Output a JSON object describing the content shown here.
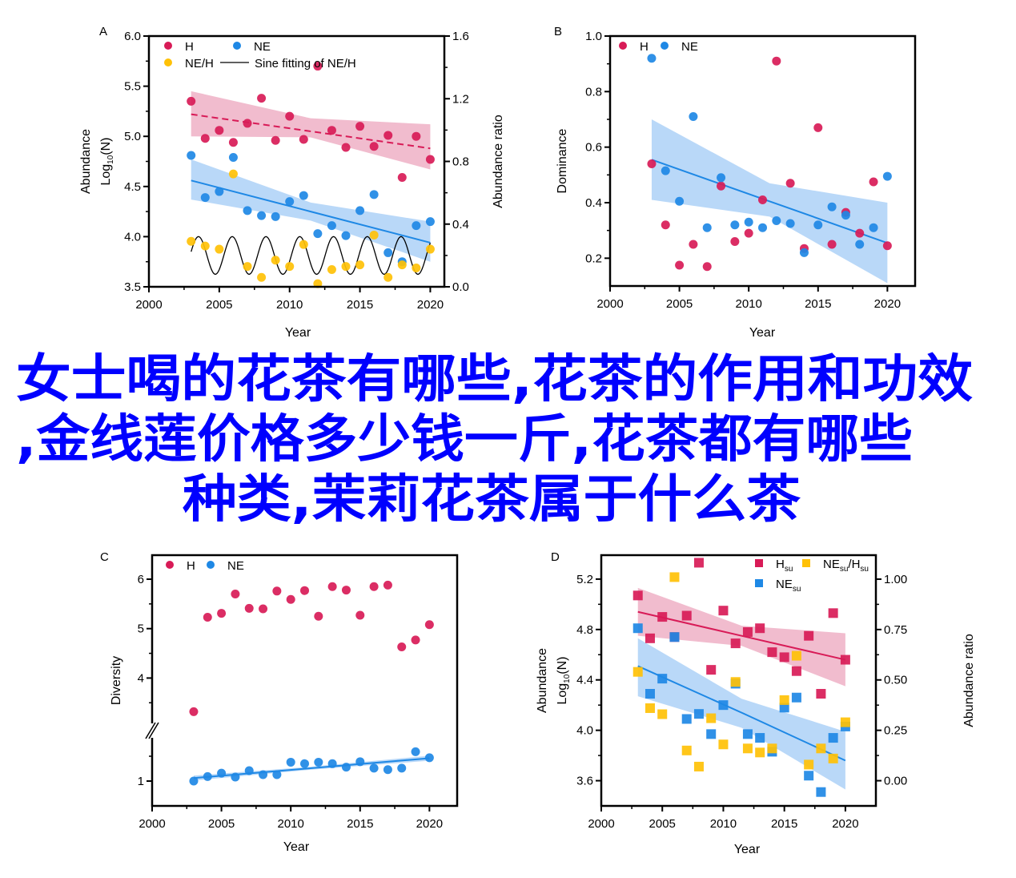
{
  "colors": {
    "H": "#d81b57",
    "NE": "#1e88e5",
    "ratio": "#ffc107",
    "H_band": "#f0b5c9",
    "NE_band": "#b5d6f8",
    "overlay": "#0000ff"
  },
  "overlay_title": [
    "女士喝的花茶有哪些,花茶的作用和功效",
    ",金线莲价格多少钱一斤,花茶都有哪些",
    "种类,茉莉花茶属于什么茶"
  ],
  "chart_data": [
    {
      "panel": "A",
      "type": "scatter",
      "xlabel": "Year",
      "xlim": [
        2000,
        2021
      ],
      "xticks": [
        2000,
        2005,
        2010,
        2015,
        2020
      ],
      "ylabel": {
        "line1": "Abundance",
        "base": "Log",
        "sub": "10",
        "rest": "(N)"
      },
      "ylim": [
        3.5,
        6.0
      ],
      "yticks": [
        "3.5",
        "4.0",
        "4.5",
        "5.0",
        "5.5",
        "6.0"
      ],
      "y2label": "Abundance ratio",
      "y2lim": [
        0,
        1.6
      ],
      "y2ticks": [
        "0.0",
        "0.4",
        "0.8",
        "1.2",
        "1.6"
      ],
      "legend": [
        {
          "label": "H",
          "series": "H"
        },
        {
          "label": "NE",
          "series": "NE"
        },
        {
          "label": "NE/H",
          "series": "ratio"
        },
        {
          "label": "Sine fitting of NE/H",
          "series": "sine"
        }
      ],
      "series": [
        {
          "name": "H",
          "marker": "circle",
          "axis": "left",
          "x": [
            2003,
            2004,
            2005,
            2006,
            2007,
            2008,
            2009,
            2010,
            2011,
            2012,
            2013,
            2014,
            2015,
            2016,
            2017,
            2018,
            2019,
            2020
          ],
          "y": [
            5.35,
            4.98,
            5.06,
            4.94,
            5.13,
            5.38,
            4.96,
            5.2,
            4.97,
            5.7,
            5.06,
            4.89,
            5.1,
            4.9,
            5.01,
            4.59,
            5.0,
            4.77
          ]
        },
        {
          "name": "NE",
          "marker": "circle",
          "axis": "left",
          "x": [
            2003,
            2004,
            2005,
            2006,
            2007,
            2008,
            2009,
            2010,
            2011,
            2012,
            2013,
            2014,
            2015,
            2016,
            2017,
            2018,
            2019,
            2020
          ],
          "y": [
            4.81,
            4.39,
            4.45,
            4.79,
            4.26,
            4.21,
            4.2,
            4.35,
            4.41,
            4.03,
            4.11,
            4.01,
            4.26,
            4.42,
            3.84,
            3.75,
            4.11,
            4.15
          ]
        },
        {
          "name": "ratio",
          "marker": "circle",
          "axis": "right",
          "x": [
            2003,
            2004,
            2005,
            2006,
            2007,
            2008,
            2009,
            2010,
            2011,
            2012,
            2013,
            2014,
            2015,
            2016,
            2017,
            2018,
            2019,
            2020
          ],
          "y": [
            0.29,
            0.26,
            0.24,
            0.72,
            0.13,
            0.06,
            0.17,
            0.13,
            0.27,
            0.02,
            0.11,
            0.13,
            0.14,
            0.33,
            0.06,
            0.14,
            0.12,
            0.24
          ]
        }
      ],
      "fits": [
        {
          "series": "H",
          "style": "dashed",
          "x": [
            2003,
            2011.5,
            2020
          ],
          "y": [
            5.22,
            5.05,
            4.88
          ],
          "lower": [
            5.0,
            4.99,
            4.67
          ],
          "upper": [
            5.45,
            5.18,
            5.12
          ]
        },
        {
          "series": "NE",
          "style": "solid",
          "x": [
            2003,
            2011.5,
            2020
          ],
          "y": [
            4.56,
            4.25,
            3.94
          ],
          "lower": [
            4.37,
            4.16,
            3.75
          ],
          "upper": [
            4.77,
            4.34,
            4.15
          ]
        }
      ],
      "sine_fit": {
        "series": "ratio",
        "axis": "right",
        "x_range": [
          2003,
          2020
        ],
        "offset": 0.2,
        "amplitude": 0.12,
        "period_years": 2.4,
        "phase": 0.2
      }
    },
    {
      "panel": "B",
      "type": "scatter",
      "xlabel": "Year",
      "xlim": [
        2000,
        2022
      ],
      "xticks": [
        2000,
        2005,
        2010,
        2015,
        2020
      ],
      "ylabel": {
        "line1": "Dominance"
      },
      "ylim": [
        0.1,
        1.0
      ],
      "yticks": [
        "0.2",
        "0.4",
        "0.6",
        "0.8",
        "1.0"
      ],
      "legend": [
        {
          "label": "H",
          "series": "H"
        },
        {
          "label": "NE",
          "series": "NE"
        }
      ],
      "series": [
        {
          "name": "H",
          "marker": "circle",
          "axis": "left",
          "x": [
            2003,
            2004,
            2005,
            2006,
            2007,
            2008,
            2009,
            2010,
            2011,
            2012,
            2013,
            2014,
            2015,
            2016,
            2017,
            2018,
            2019,
            2020
          ],
          "y": [
            0.54,
            0.32,
            0.175,
            0.25,
            0.17,
            0.46,
            0.26,
            0.29,
            0.41,
            0.91,
            0.47,
            0.235,
            0.67,
            0.25,
            0.365,
            0.29,
            0.475,
            0.245
          ]
        },
        {
          "name": "NE",
          "marker": "circle",
          "axis": "left",
          "x": [
            2003,
            2004,
            2005,
            2006,
            2007,
            2008,
            2009,
            2010,
            2011,
            2012,
            2013,
            2014,
            2015,
            2016,
            2017,
            2018,
            2019,
            2020
          ],
          "y": [
            0.92,
            0.515,
            0.405,
            0.71,
            0.31,
            0.49,
            0.32,
            0.33,
            0.31,
            0.335,
            0.325,
            0.22,
            0.32,
            0.385,
            0.355,
            0.25,
            0.31,
            0.495
          ]
        }
      ],
      "fits": [
        {
          "series": "NE",
          "style": "solid",
          "x": [
            2003,
            2011.5,
            2020
          ],
          "y": [
            0.555,
            0.405,
            0.255
          ],
          "lower": [
            0.41,
            0.35,
            0.11
          ],
          "upper": [
            0.7,
            0.47,
            0.4
          ]
        }
      ]
    },
    {
      "panel": "C",
      "type": "scatter",
      "xlabel": "Year",
      "xlim": [
        2000,
        2022
      ],
      "xticks": [
        2000,
        2005,
        2010,
        2015,
        2020
      ],
      "ylabel": {
        "line1": "Diversity"
      },
      "ylim": [
        0.5,
        6.5
      ],
      "axis_break": [
        2,
        3
      ],
      "yticks": [
        "1",
        "4",
        "5",
        "6"
      ],
      "legend": [
        {
          "label": "H",
          "series": "H"
        },
        {
          "label": "NE",
          "series": "NE"
        }
      ],
      "series": [
        {
          "name": "H",
          "marker": "circle",
          "axis": "left",
          "x": [
            2003,
            2004,
            2005,
            2006,
            2007,
            2008,
            2009,
            2010,
            2011,
            2012,
            2013,
            2014,
            2015,
            2016,
            2017,
            2018,
            2019,
            2020
          ],
          "y": [
            3.32,
            5.23,
            5.31,
            5.7,
            5.41,
            5.4,
            5.76,
            5.59,
            5.77,
            5.25,
            5.85,
            5.78,
            5.27,
            5.85,
            5.88,
            4.63,
            4.77,
            5.08
          ]
        },
        {
          "name": "NE",
          "marker": "circle",
          "axis": "left",
          "x": [
            2003,
            2004,
            2005,
            2006,
            2007,
            2008,
            2009,
            2010,
            2011,
            2012,
            2013,
            2014,
            2015,
            2016,
            2017,
            2018,
            2019,
            2020
          ],
          "y": [
            1.0,
            1.09,
            1.16,
            1.08,
            1.21,
            1.13,
            1.13,
            1.38,
            1.35,
            1.38,
            1.35,
            1.28,
            1.39,
            1.26,
            1.23,
            1.26,
            1.59,
            1.47
          ]
        }
      ],
      "fits": [
        {
          "series": "NE",
          "style": "solid",
          "x": [
            2003,
            2011.5,
            2020
          ],
          "y": [
            1.06,
            1.26,
            1.46
          ],
          "lower": [
            1.01,
            1.23,
            1.41
          ],
          "upper": [
            1.11,
            1.29,
            1.51
          ]
        }
      ]
    },
    {
      "panel": "D",
      "type": "scatter",
      "xlabel": "Year",
      "xlim": [
        2000,
        2022.5
      ],
      "xticks": [
        2000,
        2005,
        2010,
        2015,
        2020
      ],
      "ylabel": {
        "line1": "Abundance",
        "base": "Log",
        "sub": "10",
        "rest": "(N)"
      },
      "ylim": [
        3.4,
        5.39
      ],
      "yticks": [
        "3.6",
        "4.0",
        "4.4",
        "4.8",
        "5.2"
      ],
      "y2label": "Abundance ratio",
      "y2lim": [
        -0.125,
        1.119
      ],
      "y2ticks": [
        "0.00",
        "0.25",
        "0.50",
        "0.75",
        "1.00"
      ],
      "legend": [
        {
          "base": "H",
          "sub": "su",
          "series": "H"
        },
        {
          "base": "NE",
          "sub": "su",
          "series": "NE"
        },
        {
          "base": "NE",
          "sub": "su",
          "mid": "/H",
          "sub2": "su",
          "series": "ratio"
        }
      ],
      "series": [
        {
          "name": "H",
          "marker": "square",
          "axis": "left",
          "x": [
            2003,
            2004,
            2005,
            2006,
            2007,
            2008,
            2009,
            2010,
            2011,
            2012,
            2013,
            2014,
            2015,
            2016,
            2017,
            2018,
            2019,
            2020
          ],
          "y": [
            5.07,
            4.73,
            4.9,
            4.74,
            4.91,
            5.33,
            4.48,
            4.95,
            4.69,
            4.78,
            4.81,
            4.62,
            4.58,
            4.47,
            4.75,
            4.29,
            4.93,
            4.56
          ]
        },
        {
          "name": "NE",
          "marker": "square",
          "axis": "left",
          "x": [
            2003,
            2004,
            2005,
            2006,
            2007,
            2008,
            2009,
            2010,
            2011,
            2012,
            2013,
            2014,
            2015,
            2016,
            2017,
            2018,
            2019,
            2020
          ],
          "y": [
            4.81,
            4.29,
            4.41,
            4.74,
            4.09,
            4.13,
            3.97,
            4.2,
            4.37,
            3.97,
            3.94,
            3.83,
            4.18,
            4.26,
            3.64,
            3.51,
            3.94,
            4.03
          ]
        },
        {
          "name": "ratio",
          "marker": "square",
          "axis": "right",
          "x": [
            2003,
            2004,
            2005,
            2006,
            2007,
            2008,
            2009,
            2010,
            2011,
            2012,
            2013,
            2014,
            2015,
            2016,
            2017,
            2018,
            2019,
            2020
          ],
          "y": [
            0.54,
            0.36,
            0.33,
            1.01,
            0.15,
            0.07,
            0.31,
            0.18,
            0.49,
            0.16,
            0.14,
            0.16,
            0.4,
            0.62,
            0.08,
            0.16,
            0.11,
            0.29
          ]
        }
      ],
      "fits": [
        {
          "series": "H",
          "style": "solid",
          "x": [
            2003,
            2011.5,
            2020
          ],
          "y": [
            4.94,
            4.75,
            4.56
          ],
          "lower": [
            4.75,
            4.67,
            4.35
          ],
          "upper": [
            5.13,
            4.83,
            4.77
          ]
        },
        {
          "series": "NE",
          "style": "solid",
          "x": [
            2003,
            2011.5,
            2020
          ],
          "y": [
            4.51,
            4.14,
            3.76
          ],
          "lower": [
            4.27,
            4.02,
            3.53
          ],
          "upper": [
            4.73,
            4.25,
            3.99
          ]
        }
      ]
    }
  ]
}
